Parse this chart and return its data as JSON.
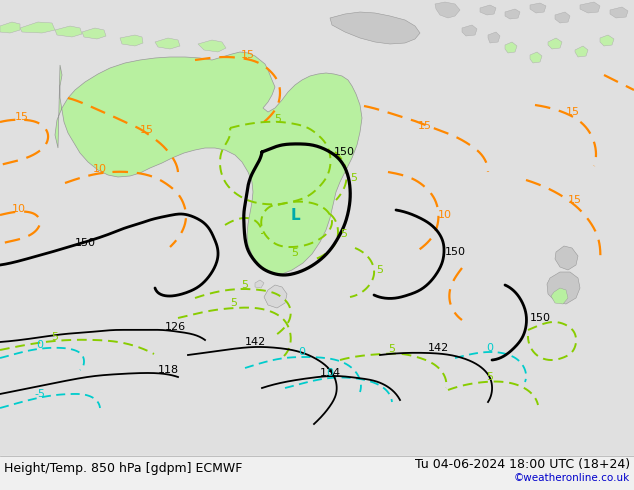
{
  "title_left": "Height/Temp. 850 hPa [gdpm] ECMWF",
  "title_right": "Tu 04-06-2024 18:00 UTC (18+24)",
  "copyright": "©weatheronline.co.uk",
  "bg_color": "#e0e0e0",
  "land_gray": "#c8c8c8",
  "aus_green": "#b8f0a0",
  "island_green": "#c0f0a8",
  "black_lw": 2.0,
  "sub_lw": 1.3,
  "orange_lw": 1.6,
  "green_lw": 1.4,
  "cyan_lw": 1.3,
  "orange_color": "#ff8800",
  "green_color": "#88cc00",
  "cyan_color": "#00cccc",
  "label_fs": 8,
  "title_fs": 9,
  "copy_fs": 7.5,
  "fig_w": 6.34,
  "fig_h": 4.9,
  "dpi": 100
}
